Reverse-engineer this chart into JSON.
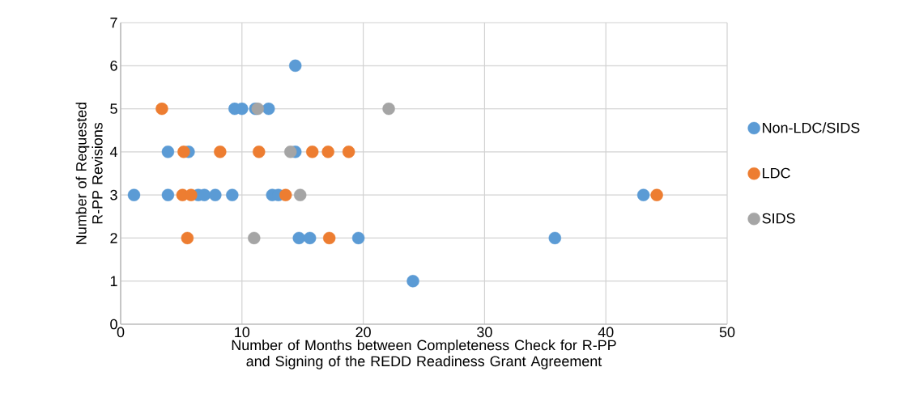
{
  "chart_data": {
    "type": "scatter",
    "xlabel": "Number of Months between Completeness Check for R-PP and Signing of the REDD Readiness Grant Agreement",
    "ylabel": "Number of Requested R-PP Revisions",
    "xlim": [
      0,
      50
    ],
    "xticks": [
      0,
      10,
      20,
      30,
      40,
      50
    ],
    "ylim": [
      0,
      7
    ],
    "yticks": [
      0,
      1,
      2,
      3,
      4,
      5,
      6,
      7
    ],
    "grid": true,
    "legend": "right",
    "marker": "circle",
    "series": [
      {
        "name": "Non-LDC/SIDS",
        "color": "#5b9bd5",
        "x": [
          14.4,
          9.4,
          10.0,
          11.1,
          12.2,
          3.9,
          5.6,
          14.4,
          1.1,
          3.9,
          6.4,
          6.9,
          7.8,
          9.2,
          12.5,
          13.0,
          14.7,
          15.6,
          19.6,
          43.1,
          35.8,
          24.1
        ],
        "values": [
          6,
          5,
          5,
          5,
          5,
          4,
          4,
          4,
          3,
          3,
          3,
          3,
          3,
          3,
          3,
          3,
          2,
          2,
          2,
          3,
          2,
          1
        ]
      },
      {
        "name": "LDC",
        "color": "#ed7d31",
        "x": [
          3.4,
          5.2,
          8.2,
          11.4,
          15.8,
          17.1,
          18.8,
          5.1,
          5.8,
          13.6,
          5.5,
          17.2,
          44.2
        ],
        "values": [
          5,
          4,
          4,
          4,
          4,
          4,
          4,
          3,
          3,
          3,
          2,
          2,
          3
        ]
      },
      {
        "name": "SIDS",
        "color": "#a5a5a5",
        "x": [
          11.3,
          22.1,
          14.0,
          14.8,
          11.0
        ],
        "values": [
          5,
          5,
          4,
          3,
          2
        ]
      }
    ]
  }
}
